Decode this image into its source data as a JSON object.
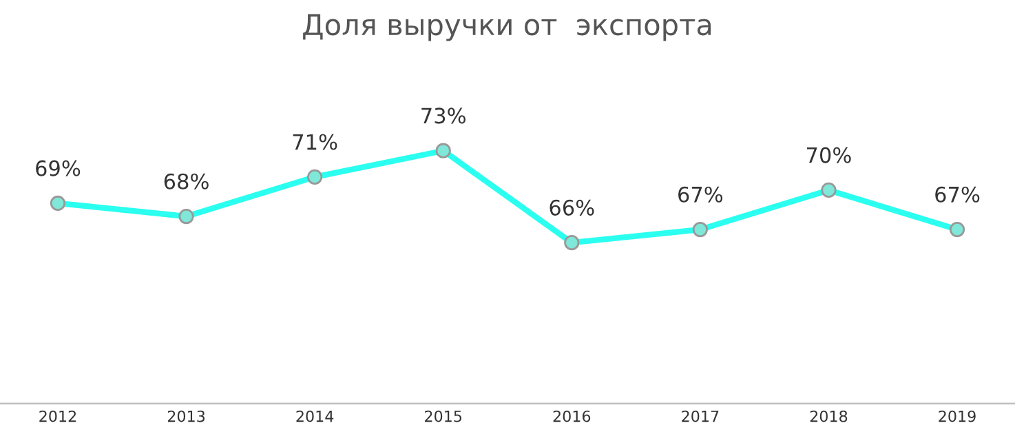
{
  "chart_data": {
    "type": "line",
    "title": "Доля выручки от  экспорта",
    "categories": [
      "2012",
      "2013",
      "2014",
      "2015",
      "2016",
      "2017",
      "2018",
      "2019"
    ],
    "series": [
      {
        "color": "#2bfff0",
        "values": [
          69,
          68,
          71,
          73,
          66,
          67,
          70,
          67
        ],
        "value_labels": [
          "69%",
          "68%",
          "71%",
          "73%",
          "66%",
          "67%",
          "70%",
          "67%"
        ]
      }
    ],
    "marker": "circle",
    "grid": false,
    "tick_labels": "x"
  }
}
